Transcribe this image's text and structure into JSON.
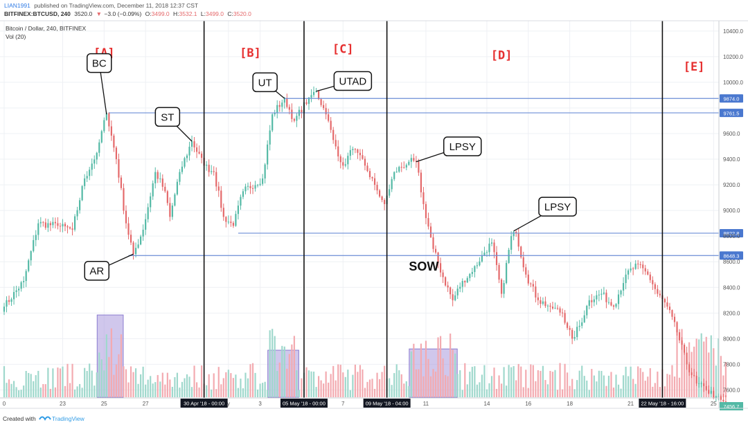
{
  "header": {
    "publisher": "LIAN1991",
    "published_text": "published on TradingView.com, December 11, 2018 12:37 CST",
    "symbol": "BITFINEX:BTCUSD, 240",
    "last": "3520.0",
    "change": "−3.0 (−0.09%)",
    "o_label": "O:",
    "o": "3499.0",
    "h_label": "H:",
    "h": "3532.1",
    "l_label": "L:",
    "l": "3499.0",
    "c_label": "C:",
    "c": "3520.0"
  },
  "pane": {
    "title": "Bitcoin / Dollar, 240, BITFINEX",
    "vol_label": "Vol (20)"
  },
  "footer": {
    "created_with": "Created with",
    "brand": "TradingView"
  },
  "colors": {
    "up": "#53b9a5",
    "down": "#e4686a",
    "vol_up": "#9fd8cc",
    "vol_down": "#f3aab0",
    "level_line": "#6b8ed6",
    "level_tag": "#4a78cf",
    "box_fill": "#a999dd",
    "phase_label": "#e63030",
    "grid": "#eef0f4"
  },
  "chart_data": {
    "type": "candlestick",
    "title": "Bitcoin / Dollar, 240, BITFINEX",
    "ylim": [
      7456.7,
      10480
    ],
    "y_ticks": [
      7600,
      7800,
      8000,
      8200,
      8400,
      8600,
      8800,
      9000,
      9200,
      9400,
      9600,
      9800,
      10000,
      10200,
      10400
    ],
    "y_ticks_hidden_by_tags": [
      9800
    ],
    "last_price_tag": "7456.7",
    "x_ticks": [
      {
        "label": "0",
        "idx": 0
      },
      {
        "label": "23",
        "idx": 24
      },
      {
        "label": "25",
        "idx": 41
      },
      {
        "label": "27",
        "idx": 58
      },
      {
        "label": "y",
        "idx": 92
      },
      {
        "label": "3",
        "idx": 105
      },
      {
        "label": "7",
        "idx": 139
      },
      {
        "label": "11",
        "idx": 173
      },
      {
        "label": "14",
        "idx": 198
      },
      {
        "label": "16",
        "idx": 215
      },
      {
        "label": "18",
        "idx": 232
      },
      {
        "label": "21",
        "idx": 257
      },
      {
        "label": "25",
        "idx": 291
      }
    ],
    "x_date_tags": [
      {
        "label": "30 Apr '18 - 00:00",
        "idx": 82
      },
      {
        "label": "05 May '18 - 00:00",
        "idx": 123
      },
      {
        "label": "09 May '18 - 04:00",
        "idx": 157
      },
      {
        "label": "22 May '18 - 16:00",
        "idx": 270
      }
    ],
    "phase_dividers_idx": [
      82,
      123,
      157,
      270
    ],
    "phase_labels": [
      {
        "text": "[A]",
        "idx": 41,
        "y": 10200
      },
      {
        "text": "[B]",
        "idx": 101,
        "y": 10200
      },
      {
        "text": "[C]",
        "idx": 139,
        "y": 10230
      },
      {
        "text": "[D]",
        "idx": 204,
        "y": 10180
      },
      {
        "text": "[E]",
        "idx": 283,
        "y": 10090
      }
    ],
    "levels": [
      {
        "value": 9874.0,
        "label": "9874.0",
        "from_idx": 115
      },
      {
        "value": 9761.5,
        "label": "9761.5",
        "from_idx": 43
      },
      {
        "value": 8822.8,
        "label": "8822.8",
        "from_idx": 96
      },
      {
        "value": 8648.3,
        "label": "8648.3",
        "from_idx": 51
      }
    ],
    "callouts": [
      {
        "text": "BC",
        "idx": 39,
        "price": 10150,
        "pt_idx": 42,
        "pt_price": 9750
      },
      {
        "text": "ST",
        "idx": 67,
        "price": 9730,
        "pt_idx": 77,
        "pt_price": 9540
      },
      {
        "text": "UT",
        "idx": 107,
        "price": 10000,
        "pt_idx": 115,
        "pt_price": 9874
      },
      {
        "text": "UTAD",
        "idx": 143,
        "price": 10010,
        "pt_idx": 128,
        "pt_price": 9930
      },
      {
        "text": "LPSY",
        "idx": 188,
        "price": 9500,
        "pt_idx": 169,
        "pt_price": 9380
      },
      {
        "text": "LPSY",
        "idx": 227,
        "price": 9030,
        "pt_idx": 209,
        "pt_price": 8840
      },
      {
        "text": "AR",
        "idx": 38,
        "price": 8530,
        "pt_idx": 53,
        "pt_price": 8660
      }
    ],
    "text_labels": [
      {
        "text": "SOW",
        "idx": 166,
        "y": 8530
      }
    ],
    "volume_boxes": [
      {
        "from_idx": 39,
        "to_idx": 48,
        "top": 8185
      },
      {
        "from_idx": 109,
        "to_idx": 120,
        "top": 7910
      },
      {
        "from_idx": 167,
        "to_idx": 185,
        "top": 7920
      }
    ],
    "anchors": [
      [
        0,
        8250
      ],
      [
        8,
        8450
      ],
      [
        14,
        8900
      ],
      [
        22,
        8880
      ],
      [
        28,
        8850
      ],
      [
        33,
        9250
      ],
      [
        38,
        9450
      ],
      [
        42,
        9760
      ],
      [
        46,
        9400
      ],
      [
        50,
        8900
      ],
      [
        53,
        8660
      ],
      [
        57,
        8850
      ],
      [
        62,
        9300
      ],
      [
        66,
        9150
      ],
      [
        68,
        8950
      ],
      [
        72,
        9300
      ],
      [
        77,
        9540
      ],
      [
        82,
        9350
      ],
      [
        86,
        9300
      ],
      [
        90,
        8950
      ],
      [
        94,
        8880
      ],
      [
        98,
        9150
      ],
      [
        106,
        9250
      ],
      [
        110,
        9750
      ],
      [
        115,
        9874
      ],
      [
        119,
        9700
      ],
      [
        125,
        9880
      ],
      [
        128,
        9930
      ],
      [
        132,
        9750
      ],
      [
        135,
        9550
      ],
      [
        139,
        9350
      ],
      [
        143,
        9480
      ],
      [
        148,
        9350
      ],
      [
        152,
        9200
      ],
      [
        156,
        9050
      ],
      [
        160,
        9300
      ],
      [
        166,
        9380
      ],
      [
        169,
        9380
      ],
      [
        172,
        9050
      ],
      [
        176,
        8700
      ],
      [
        180,
        8480
      ],
      [
        184,
        8300
      ],
      [
        188,
        8450
      ],
      [
        192,
        8520
      ],
      [
        196,
        8650
      ],
      [
        200,
        8750
      ],
      [
        204,
        8350
      ],
      [
        208,
        8800
      ],
      [
        210,
        8820
      ],
      [
        214,
        8500
      ],
      [
        219,
        8300
      ],
      [
        224,
        8250
      ],
      [
        229,
        8200
      ],
      [
        233,
        8000
      ],
      [
        236,
        8100
      ],
      [
        240,
        8300
      ],
      [
        245,
        8350
      ],
      [
        250,
        8250
      ],
      [
        255,
        8500
      ],
      [
        260,
        8580
      ],
      [
        264,
        8500
      ],
      [
        268,
        8350
      ],
      [
        272,
        8250
      ],
      [
        276,
        8050
      ],
      [
        280,
        7800
      ],
      [
        284,
        7650
      ],
      [
        288,
        7600
      ],
      [
        292,
        7550
      ],
      [
        296,
        7480
      ]
    ]
  }
}
